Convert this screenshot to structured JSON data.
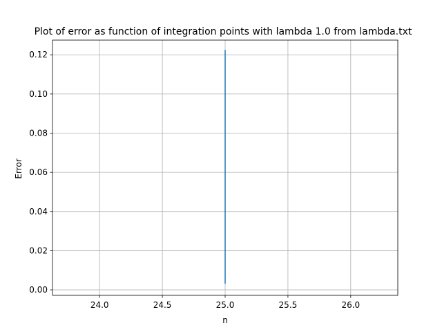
{
  "chart_data": {
    "type": "line",
    "title": "Plot of error as function of integration points with lambda 1.0 from lambda.txt",
    "xlabel": "n",
    "ylabel": "Error",
    "xlim": [
      23.625,
      26.375
    ],
    "ylim": [
      -0.0028,
      0.1275
    ],
    "x_ticks": [
      24.0,
      24.5,
      25.0,
      25.5,
      26.0
    ],
    "x_tick_labels": [
      "24.0",
      "24.5",
      "25.0",
      "25.5",
      "26.0"
    ],
    "y_ticks": [
      0.0,
      0.02,
      0.04,
      0.06,
      0.08,
      0.1,
      0.12
    ],
    "y_tick_labels": [
      "0.00",
      "0.02",
      "0.04",
      "0.06",
      "0.08",
      "0.10",
      "0.12"
    ],
    "grid": true,
    "series": [
      {
        "x": [
          25,
          25
        ],
        "y": [
          0.0031,
          0.1225
        ],
        "color": "#1f77b4"
      }
    ]
  }
}
